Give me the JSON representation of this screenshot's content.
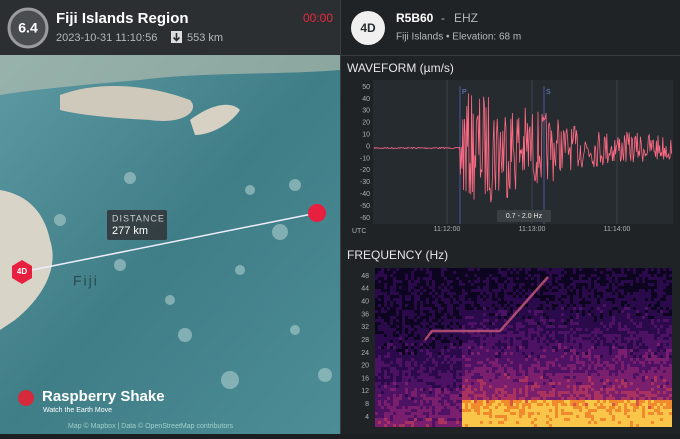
{
  "header": {
    "magnitude": "6.4",
    "title": "Fiji Islands Region",
    "datetime": "2023-10-31 11:10:56",
    "depth": "553 km",
    "timer": "00:00"
  },
  "station": {
    "badge": "4D",
    "code": "R5B60",
    "separator": "-",
    "channel": "EHZ",
    "location": "Fiji Islands • Elevation: 68 m"
  },
  "map": {
    "distance_label": "DISTANCE",
    "distance": "277 km",
    "place": "Fiji",
    "station_badge": "4D",
    "brand": "Raspberry Shake",
    "tagline": "Watch the Earth Move",
    "attribution": "Map © Mapbox | Data © OpenStreetMap contributors"
  },
  "waveform": {
    "title": "WAVEFORM (µm/s)",
    "yticks": [
      50,
      40,
      30,
      20,
      10,
      0,
      -10,
      -20,
      -30,
      -40,
      -50,
      -60
    ],
    "xticks": [
      "11:12:00",
      "11:13:00",
      "11:14:00"
    ],
    "time_zone": "UTC",
    "phases": [
      "P",
      "S"
    ],
    "filter": "0.7 - 2.0 Hz"
  },
  "frequency": {
    "title": "FREQUENCY (Hz)",
    "yticks": [
      48,
      44,
      40,
      36,
      32,
      28,
      24,
      20,
      16,
      12,
      8,
      4
    ]
  }
}
